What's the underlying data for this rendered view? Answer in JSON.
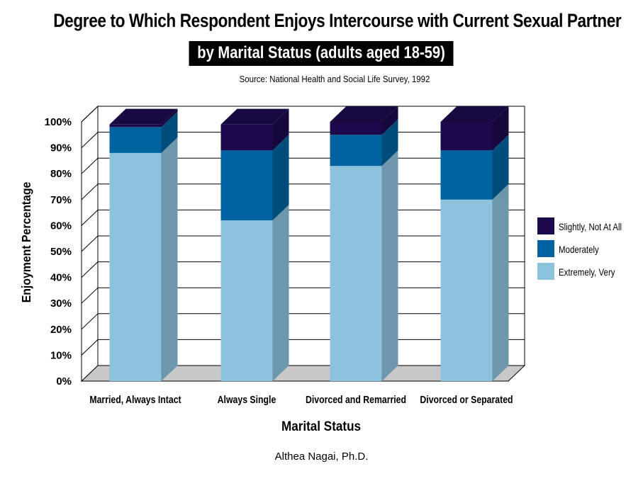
{
  "chart_data": {
    "type": "bar",
    "stacked": true,
    "three_d": true,
    "title": "Degree to Which Respondent Enjoys Intercourse with Current Sexual Partner",
    "subtitle": "by Marital Status (adults aged 18-59)",
    "source": "Source: National Health and Social Life Survey, 1992",
    "credit": "Althea Nagai, Ph.D.",
    "xlabel": "Marital Status",
    "ylabel": "Enjoyment Percentage",
    "ylim": [
      0,
      100
    ],
    "y_ticks": [
      "0%",
      "10%",
      "20%",
      "30%",
      "40%",
      "50%",
      "60%",
      "70%",
      "80%",
      "90%",
      "100%"
    ],
    "grid": true,
    "legend_position": "right",
    "categories": [
      "Married, Always Intact",
      "Always Single",
      "Divorced and Remarried",
      "Divorced or Separated"
    ],
    "series": [
      {
        "name": "Extremely, Very",
        "values": [
          88,
          62,
          83,
          70
        ],
        "color": "#8cc2dc"
      },
      {
        "name": "Moderately",
        "values": [
          10,
          27,
          12,
          19
        ],
        "color": "#00639f"
      },
      {
        "name": "Slightly, Not At All",
        "values": [
          1,
          10,
          5,
          11
        ],
        "color": "#1c0a4d"
      }
    ]
  }
}
